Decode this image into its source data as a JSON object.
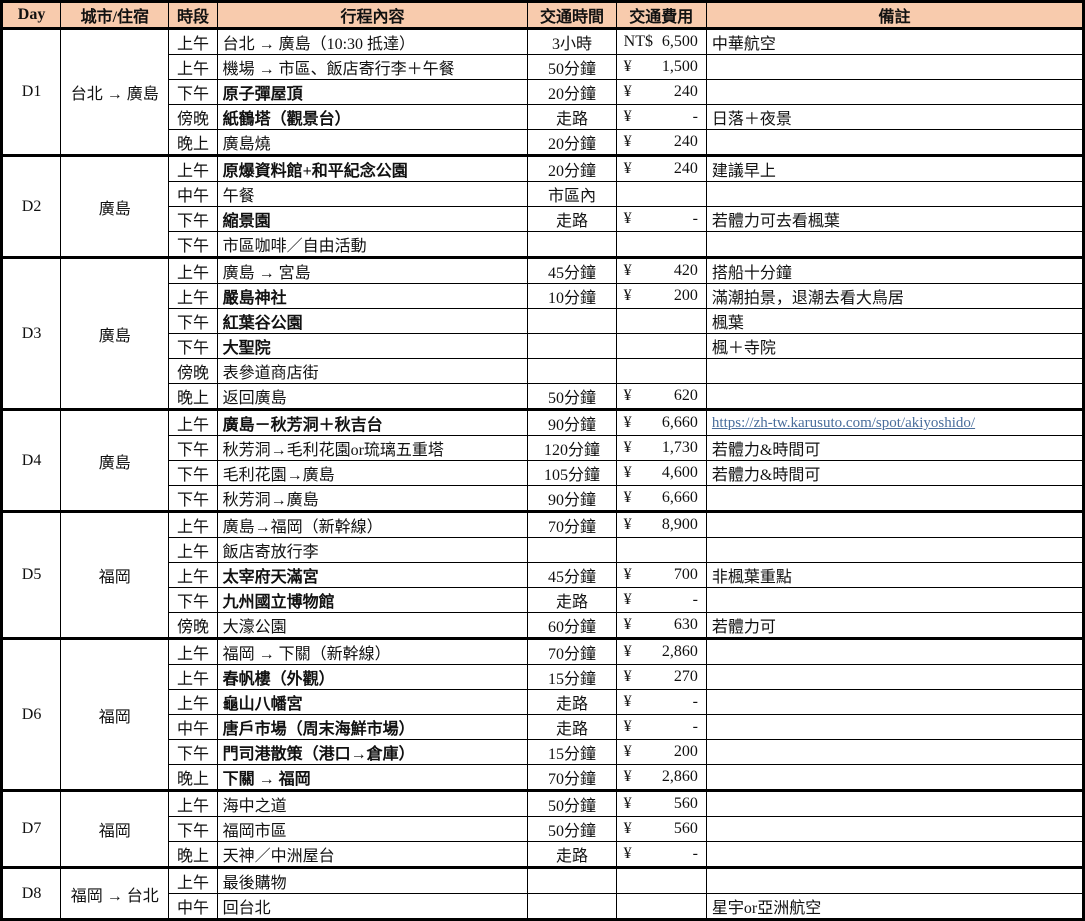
{
  "table": {
    "header_bg": "#F8CBAD",
    "link_color": "#4a6e9c",
    "columns": [
      {
        "label": "Day"
      },
      {
        "label": "城市/住宿"
      },
      {
        "label": "時段"
      },
      {
        "label": "行程內容"
      },
      {
        "label": "交通時間"
      },
      {
        "label": "交通費用"
      },
      {
        "label": "備註"
      }
    ]
  },
  "days": [
    {
      "day": "D1",
      "city": "台北 → 廣島",
      "rows": [
        {
          "period": "上午",
          "content": "台北 → 廣島（10:30 抵達）",
          "bold": false,
          "time": "3小時",
          "cur": "NT$",
          "amount": "6,500",
          "note": "中華航空"
        },
        {
          "period": "上午",
          "content": "機場 → 市區、飯店寄行李＋午餐",
          "bold": false,
          "time": "50分鐘",
          "cur": "¥",
          "amount": "1,500",
          "note": ""
        },
        {
          "period": "下午",
          "content": "原子彈屋頂",
          "bold": true,
          "time": "20分鐘",
          "cur": "¥",
          "amount": "240",
          "note": ""
        },
        {
          "period": "傍晚",
          "content": "紙鶴塔（觀景台）",
          "bold": true,
          "time": "走路",
          "cur": "¥",
          "amount": "-",
          "note": "日落＋夜景"
        },
        {
          "period": "晚上",
          "content": "廣島燒",
          "bold": false,
          "time": "20分鐘",
          "cur": "¥",
          "amount": "240",
          "note": ""
        }
      ]
    },
    {
      "day": "D2",
      "city": "廣島",
      "rows": [
        {
          "period": "上午",
          "content": "原爆資料館+和平紀念公園",
          "bold": true,
          "time": "20分鐘",
          "cur": "¥",
          "amount": "240",
          "note": "建議早上"
        },
        {
          "period": "中午",
          "content": "午餐",
          "bold": false,
          "time": "市區內",
          "cur": "",
          "amount": "",
          "note": ""
        },
        {
          "period": "下午",
          "content": "縮景園",
          "bold": true,
          "time": "走路",
          "cur": "¥",
          "amount": "-",
          "note": "若體力可去看楓葉"
        },
        {
          "period": "下午",
          "content": "市區咖啡／自由活動",
          "bold": false,
          "time": "",
          "cur": "",
          "amount": "",
          "note": ""
        }
      ]
    },
    {
      "day": "D3",
      "city": "廣島",
      "rows": [
        {
          "period": "上午",
          "content": "廣島 → 宮島",
          "bold": false,
          "time": "45分鐘",
          "cur": "¥",
          "amount": "420",
          "note": "搭船十分鐘"
        },
        {
          "period": "上午",
          "content": "嚴島神社",
          "bold": true,
          "time": "10分鐘",
          "cur": "¥",
          "amount": "200",
          "note": "滿潮拍景，退潮去看大鳥居"
        },
        {
          "period": "下午",
          "content": "紅葉谷公園",
          "bold": true,
          "time": "",
          "cur": "",
          "amount": "",
          "note": "楓葉"
        },
        {
          "period": "下午",
          "content": "大聖院",
          "bold": true,
          "time": "",
          "cur": "",
          "amount": "",
          "note": "楓＋寺院"
        },
        {
          "period": "傍晚",
          "content": "表參道商店街",
          "bold": false,
          "time": "",
          "cur": "",
          "amount": "",
          "note": ""
        },
        {
          "period": "晚上",
          "content": "返回廣島",
          "bold": false,
          "time": "50分鐘",
          "cur": "¥",
          "amount": "620",
          "note": ""
        }
      ]
    },
    {
      "day": "D4",
      "city": "廣島",
      "rows": [
        {
          "period": "上午",
          "content": "廣島－秋芳洞＋秋吉台",
          "bold": true,
          "time": "90分鐘",
          "cur": "¥",
          "amount": "6,660",
          "note": "https://zh-tw.karusuto.com/spot/akiyoshido/",
          "note_link": true
        },
        {
          "period": "下午",
          "content": "秋芳洞→毛利花園or琉璃五重塔",
          "bold": false,
          "time": "120分鐘",
          "cur": "¥",
          "amount": "1,730",
          "note": "若體力&時間可"
        },
        {
          "period": "下午",
          "content": "毛利花園→廣島",
          "bold": false,
          "time": "105分鐘",
          "cur": "¥",
          "amount": "4,600",
          "note": "若體力&時間可"
        },
        {
          "period": "下午",
          "content": "秋芳洞→廣島",
          "bold": false,
          "time": "90分鐘",
          "cur": "¥",
          "amount": "6,660",
          "note": ""
        }
      ]
    },
    {
      "day": "D5",
      "city": "福岡",
      "rows": [
        {
          "period": "上午",
          "content": "廣島→福岡（新幹線）",
          "bold": false,
          "time": "70分鐘",
          "cur": "¥",
          "amount": "8,900",
          "note": ""
        },
        {
          "period": "上午",
          "content": "飯店寄放行李",
          "bold": false,
          "time": "",
          "cur": "",
          "amount": "",
          "note": ""
        },
        {
          "period": "上午",
          "content": "太宰府天滿宮",
          "bold": true,
          "time": "45分鐘",
          "cur": "¥",
          "amount": "700",
          "note": "非楓葉重點"
        },
        {
          "period": "下午",
          "content": "九州國立博物館",
          "bold": true,
          "time": "走路",
          "cur": "¥",
          "amount": "-",
          "note": ""
        },
        {
          "period": "傍晚",
          "content": "大濠公園",
          "bold": false,
          "time": "60分鐘",
          "cur": "¥",
          "amount": "630",
          "note": "若體力可"
        }
      ]
    },
    {
      "day": "D6",
      "city": "福岡",
      "rows": [
        {
          "period": "上午",
          "content": "福岡 → 下關（新幹線）",
          "bold": false,
          "time": "70分鐘",
          "cur": "¥",
          "amount": "2,860",
          "note": ""
        },
        {
          "period": "上午",
          "content": "春帆樓（外觀）",
          "bold": true,
          "time": "15分鐘",
          "cur": "¥",
          "amount": "270",
          "note": ""
        },
        {
          "period": "上午",
          "content": "龜山八幡宮",
          "bold": true,
          "time": "走路",
          "cur": "¥",
          "amount": "-",
          "note": ""
        },
        {
          "period": "中午",
          "content": "唐戶市場（周末海鮮市場）",
          "bold": true,
          "time": "走路",
          "cur": "¥",
          "amount": "-",
          "note": ""
        },
        {
          "period": "下午",
          "content": "門司港散策（港口→倉庫）",
          "bold": true,
          "time": "15分鐘",
          "cur": "¥",
          "amount": "200",
          "note": ""
        },
        {
          "period": "晚上",
          "content": "下關 → 福岡",
          "bold": true,
          "time": "70分鐘",
          "cur": "¥",
          "amount": "2,860",
          "note": ""
        }
      ]
    },
    {
      "day": "D7",
      "city": "福岡",
      "rows": [
        {
          "period": "上午",
          "content": "海中之道",
          "bold": false,
          "time": "50分鐘",
          "cur": "¥",
          "amount": "560",
          "note": ""
        },
        {
          "period": "下午",
          "content": "福岡市區",
          "bold": false,
          "time": "50分鐘",
          "cur": "¥",
          "amount": "560",
          "note": ""
        },
        {
          "period": "晚上",
          "content": "天神／中洲屋台",
          "bold": false,
          "time": "走路",
          "cur": "¥",
          "amount": "-",
          "note": ""
        }
      ]
    },
    {
      "day": "D8",
      "city": "福岡 → 台北",
      "rows": [
        {
          "period": "上午",
          "content": "最後購物",
          "bold": false,
          "time": "",
          "cur": "",
          "amount": "",
          "note": ""
        },
        {
          "period": "中午",
          "content": "回台北",
          "bold": false,
          "time": "",
          "cur": "",
          "amount": "",
          "note": "星宇or亞洲航空"
        }
      ]
    }
  ]
}
